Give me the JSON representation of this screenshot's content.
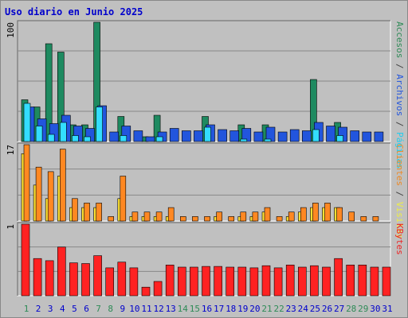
{
  "chart_data": {
    "type": "bar",
    "title": "Uso diario en Junio 2025",
    "days": [
      "1",
      "2",
      "3",
      "4",
      "5",
      "6",
      "7",
      "8",
      "9",
      "10",
      "11",
      "12",
      "13",
      "14",
      "15",
      "16",
      "17",
      "18",
      "19",
      "20",
      "21",
      "22",
      "23",
      "24",
      "25",
      "26",
      "27",
      "28",
      "29",
      "30",
      "31"
    ],
    "weekend_days": [
      "1",
      "7",
      "8",
      "14",
      "15",
      "21",
      "22",
      "28",
      "29"
    ],
    "panels": [
      {
        "id": "hits",
        "ymax_label": "100",
        "ymax": 100,
        "right_labels": [
          {
            "text": "Accesos",
            "color": "#2e8b57"
          },
          {
            "text": " / ",
            "color": "#444444"
          },
          {
            "text": "Archivos",
            "color": "#2255dd"
          },
          {
            "text": " / ",
            "color": "#444444"
          },
          {
            "text": "Páginas",
            "color": "#22ccee"
          }
        ],
        "series": [
          {
            "name": "Accesos",
            "color": "#1e8a60",
            "values": [
              35,
              29,
              82,
              75,
              14,
              14,
              100,
              0,
              21,
              0,
              4,
              22,
              0,
              0,
              0,
              21,
              0,
              0,
              14,
              0,
              14,
              0,
              0,
              0,
              52,
              0,
              16,
              0,
              0,
              0,
              0
            ]
          },
          {
            "name": "Archivos",
            "color": "#2255dd",
            "values": [
              29,
              19,
              15,
              22,
              13,
              11,
              30,
              8,
              13,
              9,
              4,
              8,
              11,
              9,
              9,
              14,
              10,
              9,
              11,
              8,
              12,
              8,
              10,
              9,
              16,
              13,
              12,
              9,
              8,
              8,
              0
            ]
          },
          {
            "name": "Páginas",
            "color": "#33ddff",
            "values": [
              32,
              13,
              6,
              16,
              5,
              4,
              29,
              0,
              5,
              0,
              0,
              4,
              0,
              0,
              0,
              12,
              0,
              0,
              2,
              0,
              2,
              0,
              0,
              0,
              10,
              0,
              5,
              0,
              0,
              0,
              0
            ]
          }
        ]
      },
      {
        "id": "visits",
        "ymax_label": "17",
        "ymax": 17,
        "right_labels": [
          {
            "text": "Clientes",
            "color": "#ee8822"
          },
          {
            "text": " / ",
            "color": "#444444"
          },
          {
            "text": "Visitas",
            "color": "#eeee44"
          }
        ],
        "series": [
          {
            "name": "Visitas",
            "color": "#ffe033",
            "values": [
              15,
              8,
              5,
              10,
              3,
              3,
              3,
              0,
              5,
              1,
              1,
              1,
              1,
              0,
              0,
              0,
              1,
              0,
              1,
              1,
              2,
              0,
              1,
              2,
              3,
              3,
              3,
              0,
              0,
              0,
              0
            ]
          },
          {
            "name": "Clientes",
            "color": "#ff8822",
            "values": [
              17,
              12,
              11,
              16,
              5,
              4,
              4,
              1,
              10,
              2,
              2,
              2,
              3,
              1,
              1,
              1,
              2,
              1,
              2,
              2,
              3,
              1,
              2,
              3,
              4,
              4,
              3,
              2,
              1,
              1,
              0
            ]
          }
        ]
      },
      {
        "id": "kbytes",
        "ymax_label": "1",
        "ymax": 1,
        "right_labels": [
          {
            "text": "KBytes",
            "color": "#ee2222"
          }
        ],
        "series": [
          {
            "name": "KBytes",
            "color": "#ff2222",
            "values": [
              1.0,
              0.52,
              0.49,
              0.68,
              0.46,
              0.45,
              0.56,
              0.39,
              0.47,
              0.39,
              0.12,
              0.2,
              0.43,
              0.4,
              0.4,
              0.41,
              0.41,
              0.4,
              0.4,
              0.39,
              0.42,
              0.39,
              0.43,
              0.4,
              0.42,
              0.4,
              0.52,
              0.43,
              0.43,
              0.4,
              0.4
            ]
          }
        ]
      }
    ]
  },
  "colors": {
    "background": "#c0c0c0",
    "plot_background": "#c0c0c0",
    "grid": "#888888",
    "title": "#0000cc",
    "weekday_label": "#0000cc",
    "weekend_label": "#2e8b57"
  }
}
